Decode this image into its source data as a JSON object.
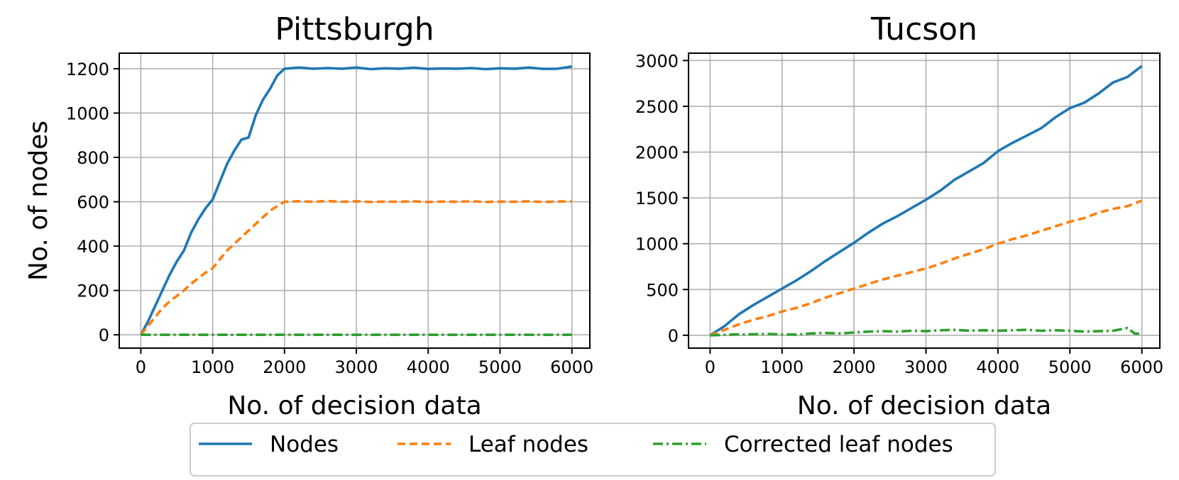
{
  "chart_data": [
    {
      "type": "line",
      "title": "Pittsburgh",
      "xlabel": "No. of decision data",
      "ylabel": "No. of nodes",
      "xlim": [
        -300,
        6250
      ],
      "ylim": [
        -60,
        1270
      ],
      "xticks": [
        0,
        1000,
        2000,
        3000,
        4000,
        5000,
        6000
      ],
      "yticks": [
        0,
        200,
        400,
        600,
        800,
        1000,
        1200
      ],
      "grid": true,
      "series": [
        {
          "name": "Nodes",
          "color": "#1f77b4",
          "style": "solid",
          "x": [
            0,
            100,
            200,
            300,
            400,
            500,
            600,
            700,
            800,
            900,
            1000,
            1100,
            1200,
            1300,
            1400,
            1500,
            1600,
            1700,
            1800,
            1900,
            2000,
            2200,
            2400,
            2600,
            2800,
            3000,
            3200,
            3400,
            3600,
            3800,
            4000,
            4200,
            4400,
            4600,
            4800,
            5000,
            5200,
            5400,
            5600,
            5800,
            6000
          ],
          "y": [
            0,
            60,
            130,
            200,
            270,
            330,
            380,
            460,
            520,
            570,
            610,
            690,
            770,
            830,
            880,
            890,
            990,
            1060,
            1110,
            1170,
            1200,
            1205,
            1200,
            1203,
            1200,
            1205,
            1198,
            1202,
            1200,
            1204,
            1199,
            1201,
            1200,
            1203,
            1198,
            1202,
            1200,
            1205,
            1199,
            1200,
            1210
          ]
        },
        {
          "name": "Leaf nodes",
          "color": "#ff7f0e",
          "style": "dashed",
          "x": [
            0,
            100,
            200,
            300,
            400,
            500,
            600,
            700,
            800,
            900,
            1000,
            1100,
            1200,
            1300,
            1400,
            1500,
            1600,
            1700,
            1800,
            1900,
            2000,
            2200,
            2400,
            2600,
            2800,
            3000,
            3200,
            3400,
            3600,
            3800,
            4000,
            4200,
            4400,
            4600,
            4800,
            5000,
            5200,
            5400,
            5600,
            5800,
            6000
          ],
          "y": [
            0,
            40,
            80,
            120,
            150,
            175,
            200,
            230,
            255,
            280,
            300,
            340,
            380,
            410,
            440,
            470,
            500,
            530,
            560,
            580,
            600,
            602,
            600,
            603,
            600,
            602,
            599,
            601,
            600,
            602,
            599,
            601,
            600,
            602,
            599,
            601,
            600,
            602,
            599,
            601,
            602
          ]
        },
        {
          "name": "Corrected leaf nodes",
          "color": "#2ca02c",
          "style": "dashdot",
          "x": [
            0,
            1000,
            2000,
            3000,
            4000,
            5000,
            6000
          ],
          "y": [
            0,
            0,
            0,
            0,
            0,
            0,
            0
          ]
        }
      ]
    },
    {
      "type": "line",
      "title": "Tucson",
      "xlabel": "No. of decision data",
      "ylabel": "",
      "xlim": [
        -300,
        6250
      ],
      "ylim": [
        -140,
        3080
      ],
      "xticks": [
        0,
        1000,
        2000,
        3000,
        4000,
        5000,
        6000
      ],
      "yticks": [
        0,
        500,
        1000,
        1500,
        2000,
        2500,
        3000
      ],
      "grid": true,
      "series": [
        {
          "name": "Nodes",
          "color": "#1f77b4",
          "style": "solid",
          "x": [
            0,
            200,
            400,
            600,
            800,
            1000,
            1200,
            1400,
            1600,
            1800,
            2000,
            2200,
            2400,
            2600,
            2800,
            3000,
            3200,
            3400,
            3600,
            3800,
            4000,
            4200,
            4400,
            4600,
            4800,
            5000,
            5200,
            5400,
            5600,
            5800,
            6000
          ],
          "y": [
            0,
            100,
            230,
            330,
            420,
            510,
            600,
            700,
            810,
            910,
            1010,
            1120,
            1220,
            1300,
            1390,
            1480,
            1580,
            1700,
            1790,
            1880,
            2010,
            2100,
            2180,
            2260,
            2380,
            2480,
            2540,
            2640,
            2760,
            2820,
            2940
          ]
        },
        {
          "name": "Leaf nodes",
          "color": "#ff7f0e",
          "style": "dashed",
          "x": [
            0,
            200,
            400,
            600,
            800,
            1000,
            1200,
            1400,
            1600,
            1800,
            2000,
            2200,
            2400,
            2600,
            2800,
            3000,
            3200,
            3400,
            3600,
            3800,
            4000,
            4200,
            4400,
            4600,
            4800,
            5000,
            5200,
            5400,
            5600,
            5800,
            6000
          ],
          "y": [
            0,
            60,
            120,
            170,
            210,
            260,
            300,
            350,
            410,
            460,
            510,
            560,
            610,
            650,
            690,
            730,
            780,
            840,
            890,
            940,
            1000,
            1050,
            1090,
            1140,
            1190,
            1240,
            1280,
            1340,
            1380,
            1410,
            1470
          ]
        },
        {
          "name": "Corrected leaf nodes",
          "color": "#2ca02c",
          "style": "dashdot",
          "x": [
            0,
            200,
            400,
            600,
            800,
            1000,
            1200,
            1400,
            1600,
            1800,
            2000,
            2200,
            2400,
            2600,
            2800,
            3000,
            3200,
            3400,
            3600,
            3800,
            4000,
            4200,
            4400,
            4600,
            4800,
            5000,
            5200,
            5400,
            5600,
            5800,
            5900,
            6000
          ],
          "y": [
            0,
            5,
            10,
            12,
            15,
            10,
            8,
            20,
            25,
            20,
            30,
            40,
            45,
            40,
            50,
            45,
            55,
            60,
            50,
            55,
            50,
            55,
            60,
            50,
            55,
            50,
            40,
            45,
            50,
            80,
            20,
            15
          ]
        }
      ]
    }
  ],
  "legend": {
    "placement": "bottom-center",
    "entries": [
      "Nodes",
      "Leaf nodes",
      "Corrected leaf nodes"
    ]
  }
}
